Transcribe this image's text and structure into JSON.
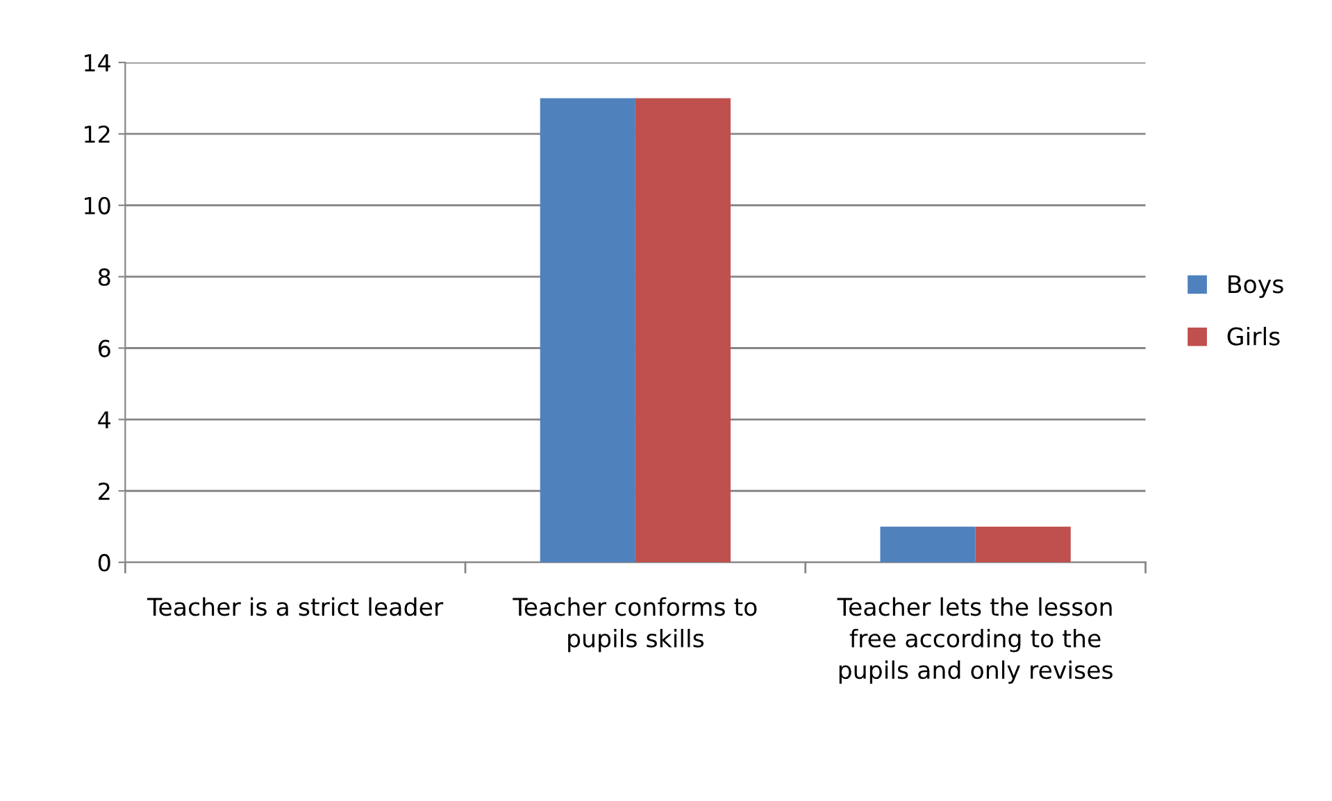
{
  "chart_data": {
    "type": "bar",
    "categories": [
      "Teacher is a strict leader",
      "Teacher conforms to pupils skills",
      "Teacher lets the lesson free according to the pupils and only revises"
    ],
    "series": [
      {
        "name": "Boys",
        "color": "#4f81bd",
        "values": [
          0,
          13,
          1
        ]
      },
      {
        "name": "Girls",
        "color": "#c0504d",
        "values": [
          0,
          13,
          1
        ]
      }
    ],
    "ylim": [
      0,
      14
    ],
    "yticks": [
      0,
      2,
      4,
      6,
      8,
      10,
      12,
      14
    ],
    "grid": "y",
    "legend": "right"
  }
}
